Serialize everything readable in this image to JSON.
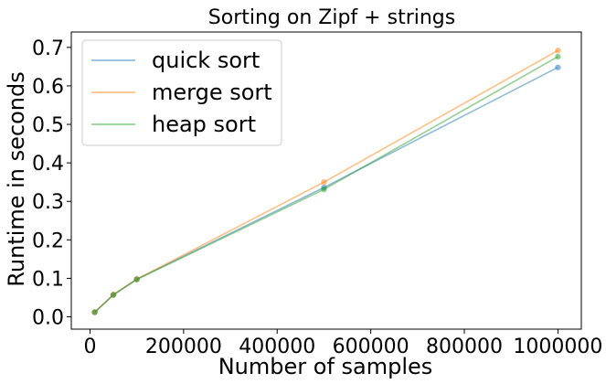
{
  "chart_data": {
    "type": "line",
    "title": "Sorting on Zipf + strings",
    "xlabel": "Number of samples",
    "ylabel": "Runtime in seconds",
    "x": [
      10000,
      50000,
      100000,
      500000,
      1000000
    ],
    "xlim": [
      -40000,
      1050000
    ],
    "ylim": [
      -0.032,
      0.74
    ],
    "xticks": [
      0,
      200000,
      400000,
      600000,
      800000,
      1000000
    ],
    "xtick_labels": [
      "0",
      "200000",
      "400000",
      "600000",
      "800000",
      "1000000"
    ],
    "yticks": [
      0.0,
      0.1,
      0.2,
      0.3,
      0.4,
      0.5,
      0.6,
      0.7
    ],
    "ytick_labels": [
      "0.0",
      "0.1",
      "0.2",
      "0.3",
      "0.4",
      "0.5",
      "0.6",
      "0.7"
    ],
    "grid": false,
    "legend_position": "top-left",
    "series": [
      {
        "name": "quick sort",
        "color": "#1f77b4",
        "values": [
          0.012,
          0.057,
          0.098,
          0.336,
          0.648
        ]
      },
      {
        "name": "merge sort",
        "color": "#ff7f0e",
        "values": [
          0.012,
          0.058,
          0.098,
          0.35,
          0.692
        ]
      },
      {
        "name": "heap sort",
        "color": "#2ca02c",
        "values": [
          0.012,
          0.057,
          0.097,
          0.331,
          0.676
        ]
      }
    ]
  }
}
